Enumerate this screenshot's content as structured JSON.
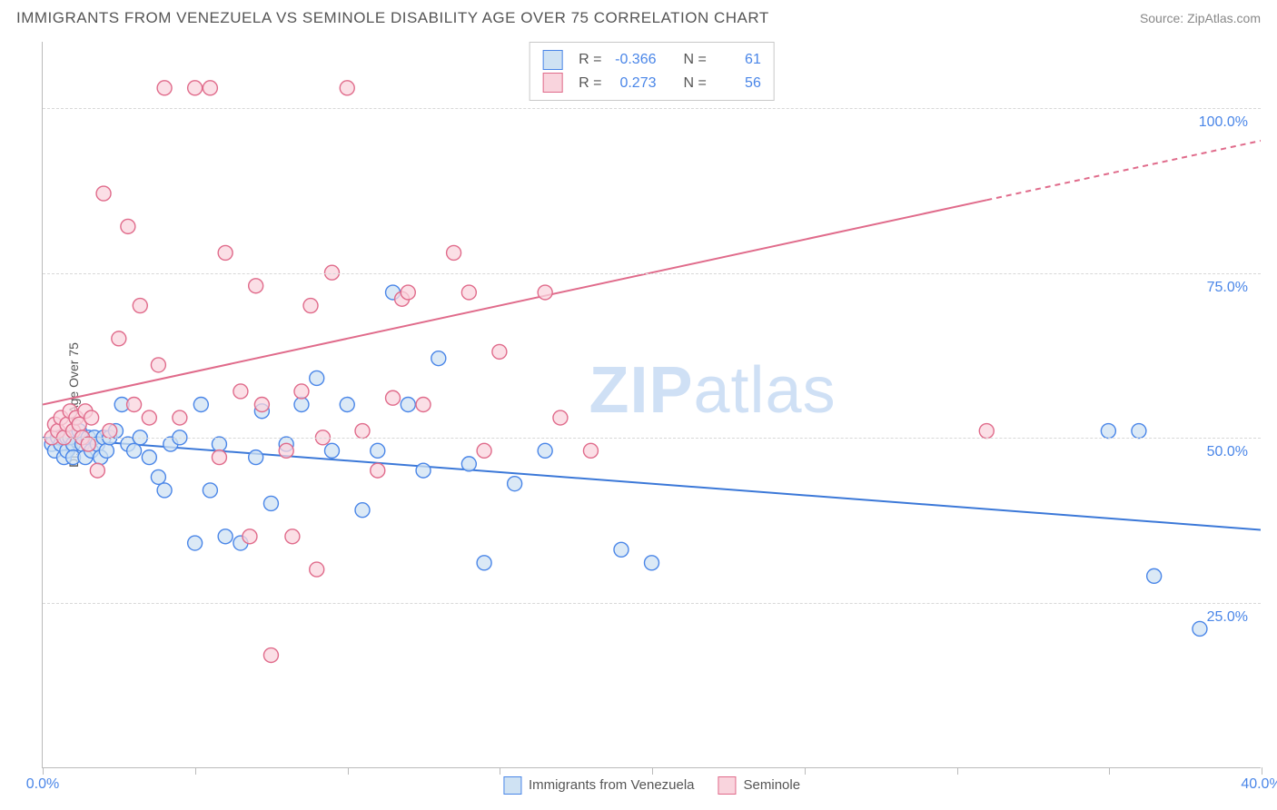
{
  "header": {
    "title": "IMMIGRANTS FROM VENEZUELA VS SEMINOLE DISABILITY AGE OVER 75 CORRELATION CHART",
    "source_label": "Source: ZipAtlas.com"
  },
  "chart": {
    "type": "scatter",
    "ylabel": "Disability Age Over 75",
    "xlim": [
      0,
      40
    ],
    "ylim": [
      0,
      110
    ],
    "x_ticks": [
      0,
      5,
      10,
      15,
      20,
      25,
      30,
      35,
      40
    ],
    "x_tick_labels": {
      "0": "0.0%",
      "40": "40.0%"
    },
    "y_gridlines": [
      25,
      50,
      75,
      100
    ],
    "y_tick_labels": {
      "25": "25.0%",
      "50": "50.0%",
      "75": "75.0%",
      "100": "100.0%"
    },
    "background_color": "#ffffff",
    "grid_color": "#d8d8d8",
    "axis_color": "#bbbbbb",
    "label_color": "#555555",
    "tick_label_color": "#4a86e8",
    "marker_radius": 8,
    "marker_stroke_width": 1.4,
    "line_width": 2,
    "watermark": "ZIPatlas",
    "series": [
      {
        "key": "venezuela",
        "label": "Immigrants from Venezuela",
        "fill": "#cfe2f3",
        "stroke": "#4a86e8",
        "line_color": "#3b78d8",
        "R": "-0.366",
        "N": "61",
        "trend": {
          "x1": 0,
          "y1": 50,
          "x2": 40,
          "y2": 36,
          "dashed_after_x": null
        },
        "points": [
          [
            0.3,
            49
          ],
          [
            0.4,
            48
          ],
          [
            0.5,
            50
          ],
          [
            0.6,
            49
          ],
          [
            0.7,
            47
          ],
          [
            0.8,
            48
          ],
          [
            0.8,
            50
          ],
          [
            0.9,
            50
          ],
          [
            1.0,
            49
          ],
          [
            1.0,
            47
          ],
          [
            1.2,
            51
          ],
          [
            1.3,
            49
          ],
          [
            1.4,
            47
          ],
          [
            1.5,
            50
          ],
          [
            1.6,
            48
          ],
          [
            1.7,
            50
          ],
          [
            1.8,
            49
          ],
          [
            1.9,
            47
          ],
          [
            2.0,
            50
          ],
          [
            2.1,
            48
          ],
          [
            2.2,
            50
          ],
          [
            2.4,
            51
          ],
          [
            2.6,
            55
          ],
          [
            2.8,
            49
          ],
          [
            3.0,
            48
          ],
          [
            3.2,
            50
          ],
          [
            3.5,
            47
          ],
          [
            3.8,
            44
          ],
          [
            4.0,
            42
          ],
          [
            4.2,
            49
          ],
          [
            4.5,
            50
          ],
          [
            5.0,
            34
          ],
          [
            5.2,
            55
          ],
          [
            5.5,
            42
          ],
          [
            5.8,
            49
          ],
          [
            6.0,
            35
          ],
          [
            6.5,
            34
          ],
          [
            7.0,
            47
          ],
          [
            7.2,
            54
          ],
          [
            7.5,
            40
          ],
          [
            8.0,
            49
          ],
          [
            8.5,
            55
          ],
          [
            9.0,
            59
          ],
          [
            9.5,
            48
          ],
          [
            10.0,
            55
          ],
          [
            10.5,
            39
          ],
          [
            11.0,
            48
          ],
          [
            11.5,
            72
          ],
          [
            12.0,
            55
          ],
          [
            12.5,
            45
          ],
          [
            13.0,
            62
          ],
          [
            14.0,
            46
          ],
          [
            14.5,
            31
          ],
          [
            15.5,
            43
          ],
          [
            16.5,
            48
          ],
          [
            19.0,
            33
          ],
          [
            20.0,
            31
          ],
          [
            35.0,
            51
          ],
          [
            36.0,
            51
          ],
          [
            36.5,
            29
          ],
          [
            38.0,
            21
          ]
        ]
      },
      {
        "key": "seminole",
        "label": "Seminole",
        "fill": "#f9d4dd",
        "stroke": "#e06b8b",
        "line_color": "#e06b8b",
        "R": "0.273",
        "N": "56",
        "trend": {
          "x1": 0,
          "y1": 55,
          "x2": 40,
          "y2": 95,
          "dashed_after_x": 31
        },
        "points": [
          [
            0.3,
            50
          ],
          [
            0.4,
            52
          ],
          [
            0.5,
            51
          ],
          [
            0.6,
            53
          ],
          [
            0.7,
            50
          ],
          [
            0.8,
            52
          ],
          [
            0.9,
            54
          ],
          [
            1.0,
            51
          ],
          [
            1.1,
            53
          ],
          [
            1.2,
            52
          ],
          [
            1.3,
            50
          ],
          [
            1.4,
            54
          ],
          [
            1.5,
            49
          ],
          [
            1.6,
            53
          ],
          [
            1.8,
            45
          ],
          [
            2.0,
            87
          ],
          [
            2.2,
            51
          ],
          [
            2.5,
            65
          ],
          [
            2.8,
            82
          ],
          [
            3.0,
            55
          ],
          [
            3.2,
            70
          ],
          [
            3.5,
            53
          ],
          [
            3.8,
            61
          ],
          [
            4.0,
            103
          ],
          [
            4.5,
            53
          ],
          [
            5.0,
            103
          ],
          [
            5.5,
            103
          ],
          [
            5.8,
            47
          ],
          [
            6.0,
            78
          ],
          [
            6.5,
            57
          ],
          [
            6.8,
            35
          ],
          [
            7.0,
            73
          ],
          [
            7.2,
            55
          ],
          [
            7.5,
            17
          ],
          [
            8.0,
            48
          ],
          [
            8.2,
            35
          ],
          [
            8.5,
            57
          ],
          [
            8.8,
            70
          ],
          [
            9.0,
            30
          ],
          [
            9.2,
            50
          ],
          [
            9.5,
            75
          ],
          [
            10.0,
            103
          ],
          [
            10.5,
            51
          ],
          [
            11.0,
            45
          ],
          [
            11.5,
            56
          ],
          [
            11.8,
            71
          ],
          [
            12.0,
            72
          ],
          [
            12.5,
            55
          ],
          [
            13.5,
            78
          ],
          [
            14.0,
            72
          ],
          [
            14.5,
            48
          ],
          [
            15.0,
            63
          ],
          [
            16.5,
            72
          ],
          [
            17.0,
            53
          ],
          [
            18.0,
            48
          ],
          [
            31.0,
            51
          ]
        ]
      }
    ],
    "bottom_legend": [
      {
        "series": "venezuela"
      },
      {
        "series": "seminole"
      }
    ]
  }
}
